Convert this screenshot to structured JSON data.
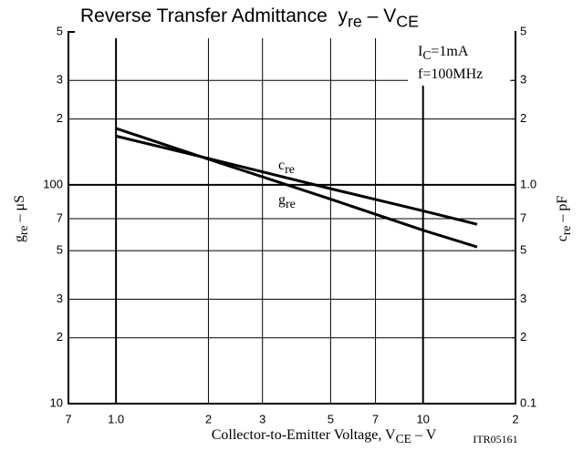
{
  "chart_data": {
    "type": "line",
    "title": [
      {
        "text": "Reverse Transfer Admittance  y"
      },
      {
        "text": "re",
        "sub": true
      },
      {
        "text": " – V"
      },
      {
        "text": "CE",
        "sub": true
      }
    ],
    "x_label": [
      {
        "text": "Collector-to-Emitter Voltage, V"
      },
      {
        "text": "CE",
        "sub": true
      },
      {
        "text": " – V"
      }
    ],
    "code": "ITR05161",
    "y_label": [
      {
        "text": "g"
      },
      {
        "text": "re",
        "sub": true
      },
      {
        "text": " – μS"
      }
    ],
    "y2_label": [
      {
        "text": "c"
      },
      {
        "text": "re",
        "sub": true
      },
      {
        "text": " – pF"
      }
    ],
    "annotations": [
      [
        {
          "text": "I"
        },
        {
          "text": "C",
          "sub": true
        },
        {
          "text": "=1mA"
        }
      ],
      [
        {
          "text": "f=100MHz"
        }
      ]
    ],
    "x": [
      1,
      2,
      5,
      10,
      15
    ],
    "series": [
      {
        "name": "g",
        "name_sub": "re",
        "color": "#000000",
        "values": [
          181,
          131,
          86,
          62,
          52
        ]
      },
      {
        "name": "c",
        "name_sub": "re",
        "color": "#000000",
        "axis": "y2",
        "values": [
          1.67,
          1.32,
          0.96,
          0.76,
          0.66
        ]
      }
    ],
    "xscale": "log",
    "yscale": "log",
    "grid": true,
    "xlim": [
      0.7,
      20
    ],
    "xticks": [
      {
        "value": 0.7,
        "label": "7"
      },
      {
        "value": 1,
        "label": "1.0"
      },
      2,
      3,
      5,
      7,
      10,
      {
        "value": 20,
        "label": "2"
      }
    ],
    "ylim": [
      10,
      500
    ],
    "yticks": [
      10,
      {
        "value": 20,
        "label": "2"
      },
      {
        "value": 30,
        "label": "3"
      },
      {
        "value": 50,
        "label": "5"
      },
      {
        "value": 70,
        "label": "7"
      },
      100,
      {
        "value": 200,
        "label": "2"
      },
      {
        "value": 300,
        "label": "3"
      },
      {
        "value": 500,
        "label": "5"
      }
    ],
    "y2lim": [
      0.1,
      5
    ],
    "y2ticks": [
      0.1,
      {
        "value": 0.2,
        "label": "2"
      },
      {
        "value": 0.3,
        "label": "3"
      },
      {
        "value": 0.5,
        "label": "5"
      },
      {
        "value": 0.7,
        "label": "7"
      },
      {
        "value": 1,
        "label": "1.0"
      },
      2,
      3,
      5
    ]
  }
}
